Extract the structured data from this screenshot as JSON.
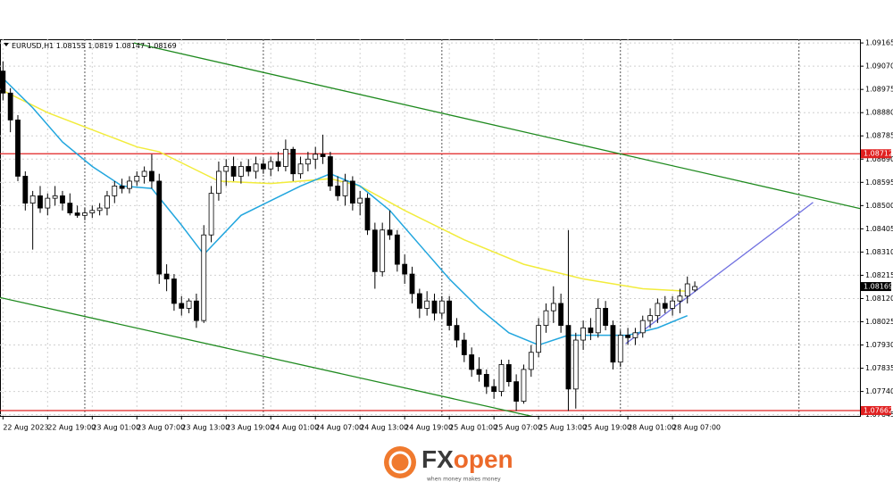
{
  "chart_data": {
    "type": "candlestick",
    "symbol": "EURUSD,H1",
    "ohlc": [
      [
        1.0905,
        1.0909,
        1.0893,
        1.0896
      ],
      [
        1.0896,
        1.0898,
        1.088,
        1.0885
      ],
      [
        1.0885,
        1.0887,
        1.086,
        1.0862
      ],
      [
        1.0862,
        1.0864,
        1.0848,
        1.0851
      ],
      [
        1.0851,
        1.0856,
        1.0832,
        1.0854
      ],
      [
        1.0854,
        1.0858,
        1.0847,
        1.0849
      ],
      [
        1.0849,
        1.0855,
        1.0846,
        1.0853
      ],
      [
        1.0853,
        1.0858,
        1.085,
        1.0854
      ],
      [
        1.0854,
        1.0856,
        1.0848,
        1.0851
      ],
      [
        1.0851,
        1.0855,
        1.0846,
        1.0847
      ],
      [
        1.0847,
        1.085,
        1.0845,
        1.0846
      ],
      [
        1.0846,
        1.0849,
        1.0844,
        1.0847
      ],
      [
        1.0847,
        1.085,
        1.0845,
        1.0848
      ],
      [
        1.0848,
        1.0851,
        1.0846,
        1.0849
      ],
      [
        1.0849,
        1.0856,
        1.0846,
        1.0854
      ],
      [
        1.0854,
        1.086,
        1.0851,
        1.0858
      ],
      [
        1.0858,
        1.0861,
        1.0855,
        1.0857
      ],
      [
        1.0857,
        1.0862,
        1.0855,
        1.086
      ],
      [
        1.086,
        1.0864,
        1.0858,
        1.0862
      ],
      [
        1.0862,
        1.0866,
        1.0859,
        1.0864
      ],
      [
        1.0864,
        1.0871,
        1.0857,
        1.086
      ],
      [
        1.086,
        1.0863,
        1.0818,
        1.0822
      ],
      [
        1.0822,
        1.0826,
        1.0815,
        1.082
      ],
      [
        1.082,
        1.0822,
        1.0807,
        1.081
      ],
      [
        1.081,
        1.0813,
        1.0805,
        1.0808
      ],
      [
        1.0808,
        1.0812,
        1.0806,
        1.0811
      ],
      [
        1.0811,
        1.0814,
        1.08,
        1.0803
      ],
      [
        1.0803,
        1.0842,
        1.0802,
        1.0838
      ],
      [
        1.0838,
        1.0858,
        1.0835,
        1.0855
      ],
      [
        1.0855,
        1.0868,
        1.0852,
        1.0864
      ],
      [
        1.0864,
        1.0869,
        1.0858,
        1.0866
      ],
      [
        1.0866,
        1.087,
        1.086,
        1.0862
      ],
      [
        1.0862,
        1.0868,
        1.0859,
        1.0866
      ],
      [
        1.0866,
        1.0869,
        1.0862,
        1.0864
      ],
      [
        1.0864,
        1.087,
        1.0861,
        1.0867
      ],
      [
        1.0867,
        1.0869,
        1.0863,
        1.0865
      ],
      [
        1.0865,
        1.087,
        1.0862,
        1.0868
      ],
      [
        1.0868,
        1.0872,
        1.0864,
        1.0866
      ],
      [
        1.0866,
        1.0877,
        1.0864,
        1.0873
      ],
      [
        1.0873,
        1.0874,
        1.086,
        1.0863
      ],
      [
        1.0863,
        1.087,
        1.0861,
        1.0867
      ],
      [
        1.0867,
        1.0872,
        1.0864,
        1.0869
      ],
      [
        1.0869,
        1.0874,
        1.0865,
        1.0871
      ],
      [
        1.0871,
        1.0879,
        1.0867,
        1.087
      ],
      [
        1.087,
        1.0872,
        1.0856,
        1.0858
      ],
      [
        1.0858,
        1.0862,
        1.0852,
        1.0854
      ],
      [
        1.0854,
        1.0863,
        1.085,
        1.086
      ],
      [
        1.086,
        1.0862,
        1.0848,
        1.0851
      ],
      [
        1.0851,
        1.0856,
        1.0846,
        1.0853
      ],
      [
        1.0853,
        1.0855,
        1.0838,
        1.084
      ],
      [
        1.084,
        1.0843,
        1.0816,
        1.0823
      ],
      [
        1.0823,
        1.0843,
        1.0821,
        1.084
      ],
      [
        1.084,
        1.0848,
        1.0836,
        1.0838
      ],
      [
        1.0838,
        1.084,
        1.0823,
        1.0826
      ],
      [
        1.0826,
        1.083,
        1.0818,
        1.0822
      ],
      [
        1.0822,
        1.0825,
        1.081,
        1.0814
      ],
      [
        1.0814,
        1.0816,
        1.0804,
        1.0808
      ],
      [
        1.0808,
        1.0815,
        1.0805,
        1.0811
      ],
      [
        1.0811,
        1.0814,
        1.0803,
        1.0806
      ],
      [
        1.0806,
        1.0813,
        1.0804,
        1.0811
      ],
      [
        1.0811,
        1.0813,
        1.0799,
        1.0801
      ],
      [
        1.0801,
        1.0804,
        1.0792,
        1.0795
      ],
      [
        1.0795,
        1.0798,
        1.0786,
        1.0789
      ],
      [
        1.0789,
        1.0792,
        1.078,
        1.0783
      ],
      [
        1.0783,
        1.0788,
        1.0778,
        1.0781
      ],
      [
        1.0781,
        1.0783,
        1.0773,
        1.0776
      ],
      [
        1.0776,
        1.0779,
        1.0771,
        1.0774
      ],
      [
        1.0774,
        1.0787,
        1.0772,
        1.0785
      ],
      [
        1.0785,
        1.0787,
        1.0776,
        1.0778
      ],
      [
        1.0778,
        1.0781,
        1.0766,
        1.077
      ],
      [
        1.077,
        1.0785,
        1.0769,
        1.0783
      ],
      [
        1.0783,
        1.0793,
        1.078,
        1.079
      ],
      [
        1.079,
        1.0804,
        1.0788,
        1.0801
      ],
      [
        1.0801,
        1.081,
        1.0798,
        1.0807
      ],
      [
        1.0807,
        1.0817,
        1.0802,
        1.081
      ],
      [
        1.081,
        1.0814,
        1.0798,
        1.0801
      ],
      [
        1.0801,
        1.084,
        1.0766,
        1.0775
      ],
      [
        1.0775,
        1.0798,
        1.0767,
        1.0795
      ],
      [
        1.0795,
        1.0803,
        1.0791,
        1.08
      ],
      [
        1.08,
        1.0804,
        1.0795,
        1.0798
      ],
      [
        1.0798,
        1.0812,
        1.0796,
        1.0808
      ],
      [
        1.0808,
        1.0811,
        1.0799,
        1.0801
      ],
      [
        1.0801,
        1.0803,
        1.0783,
        1.0786
      ],
      [
        1.0786,
        1.0799,
        1.0784,
        1.0797
      ],
      [
        1.0797,
        1.08,
        1.0793,
        1.0796
      ],
      [
        1.0796,
        1.08,
        1.0793,
        1.0798
      ],
      [
        1.0798,
        1.0805,
        1.0796,
        1.0803
      ],
      [
        1.0803,
        1.0808,
        1.08,
        1.0805
      ],
      [
        1.0805,
        1.0812,
        1.0802,
        1.081
      ],
      [
        1.081,
        1.0813,
        1.0806,
        1.0808
      ],
      [
        1.0808,
        1.0813,
        1.0805,
        1.0811
      ],
      [
        1.0811,
        1.0816,
        1.0806,
        1.0813
      ],
      [
        1.0813,
        1.0821,
        1.081,
        1.0818
      ],
      [
        1.08155,
        1.0819,
        1.08147,
        1.08169
      ]
    ],
    "ma": [
      {
        "color": "#f2ec3c",
        "x": [
          0,
          6,
          12,
          18,
          21,
          25,
          29,
          36,
          44,
          48,
          54,
          62,
          70,
          78,
          86,
          92
        ],
        "values": [
          1.0897,
          1.0888,
          1.0881,
          1.0874,
          1.0872,
          1.0866,
          1.086,
          1.0859,
          1.0861,
          1.0858,
          1.0848,
          1.0836,
          1.0826,
          1.082,
          1.0816,
          1.0815
        ]
      },
      {
        "color": "#22a6de",
        "x": [
          0,
          4,
          8,
          12,
          16,
          20,
          24,
          27,
          32,
          36,
          40,
          44,
          48,
          52,
          56,
          60,
          64,
          68,
          72,
          76,
          80,
          84,
          88,
          92
        ],
        "values": [
          1.0902,
          1.089,
          1.0876,
          1.0866,
          1.0858,
          1.0857,
          1.0842,
          1.083,
          1.0846,
          1.0852,
          1.0858,
          1.0863,
          1.0858,
          1.0848,
          1.0834,
          1.082,
          1.0808,
          1.0798,
          1.0793,
          1.0797,
          1.0797,
          1.0797,
          1.08,
          1.0805
        ]
      }
    ],
    "trendlines": [
      {
        "color": "#1f8a1f",
        "x": [
          17.6,
          115.2
        ],
        "values": [
          1.09165,
          1.08488
        ]
      },
      {
        "color": "#1f8a1f",
        "x": [
          -0.4,
          74.1
        ],
        "values": [
          1.08124,
          1.07618
        ]
      },
      {
        "color": "#7070e0",
        "x": [
          83.7,
          108.9
        ],
        "values": [
          1.07935,
          1.08513
        ]
      }
    ],
    "levels": [
      {
        "value": 1.08712,
        "color": "#e02020"
      },
      {
        "value": 1.07662,
        "color": "#e02020"
      }
    ],
    "day_separators": [
      11,
      35,
      59,
      83,
      107
    ],
    "xlim": [
      -0.4,
      115.2
    ],
    "ylim": [
      1.0764,
      1.0918
    ],
    "grid": true,
    "xticks": [
      {
        "value": 0,
        "label": "22 Aug 2023"
      },
      {
        "value": 6,
        "label": "22 Aug 19:00"
      },
      {
        "value": 12,
        "label": "23 Aug 01:00"
      },
      {
        "value": 18,
        "label": "23 Aug 07:00"
      },
      {
        "value": 24,
        "label": "23 Aug 13:00"
      },
      {
        "value": 30,
        "label": "23 Aug 19:00"
      },
      {
        "value": 36,
        "label": "24 Aug 01:00"
      },
      {
        "value": 42,
        "label": "24 Aug 07:00"
      },
      {
        "value": 48,
        "label": "24 Aug 13:00"
      },
      {
        "value": 54,
        "label": "24 Aug 19:00"
      },
      {
        "value": 60,
        "label": "25 Aug 01:00"
      },
      {
        "value": 66,
        "label": "25 Aug 07:00"
      },
      {
        "value": 72,
        "label": "25 Aug 13:00"
      },
      {
        "value": 78,
        "label": "25 Aug 19:00"
      },
      {
        "value": 84,
        "label": "28 Aug 01:00"
      },
      {
        "value": 90,
        "label": "28 Aug 07:00"
      }
    ],
    "yticks": [
      {
        "value": 1.09165,
        "label": "1.09165"
      },
      {
        "value": 1.0907,
        "label": "1.09070"
      },
      {
        "value": 1.08975,
        "label": "1.08975"
      },
      {
        "value": 1.0888,
        "label": "1.08880"
      },
      {
        "value": 1.08785,
        "label": "1.08785"
      },
      {
        "value": 1.0869,
        "label": "1.08690"
      },
      {
        "value": 1.08595,
        "label": "1.08595"
      },
      {
        "value": 1.085,
        "label": "1.08500"
      },
      {
        "value": 1.08405,
        "label": "1.08405"
      },
      {
        "value": 1.0831,
        "label": "1.08310"
      },
      {
        "value": 1.08215,
        "label": "1.08215"
      },
      {
        "value": 1.0812,
        "label": "1.08120"
      },
      {
        "value": 1.08025,
        "label": "1.08025"
      },
      {
        "value": 1.0793,
        "label": "1.07930"
      },
      {
        "value": 1.07835,
        "label": "1.07835"
      },
      {
        "value": 1.0774,
        "label": "1.07740"
      },
      {
        "value": 1.07645,
        "label": "1.07645"
      }
    ]
  },
  "brand": {
    "name_parts": [
      "FX",
      "open"
    ],
    "tagline": "when money makes money"
  }
}
